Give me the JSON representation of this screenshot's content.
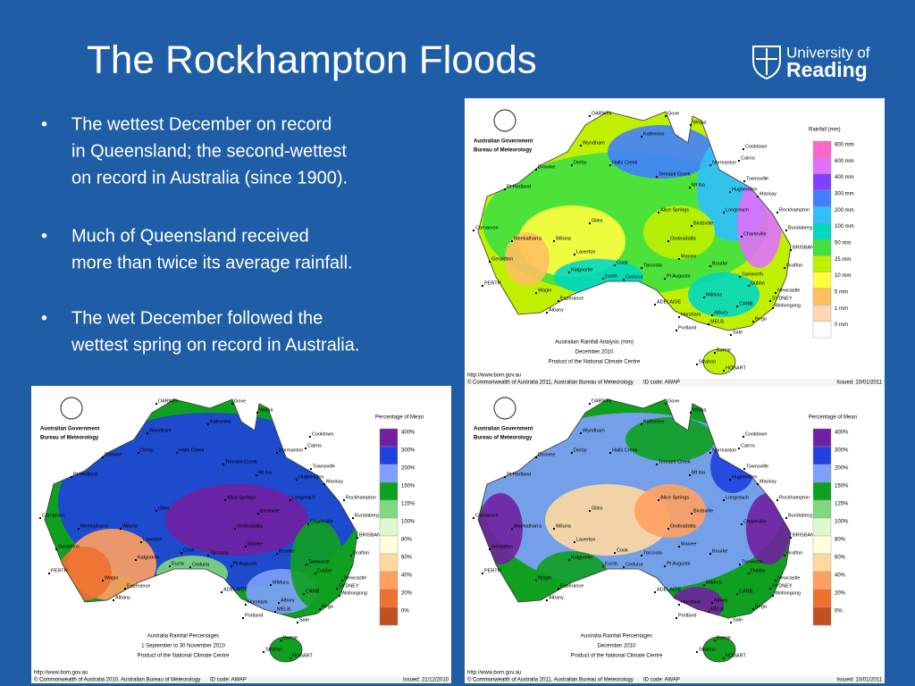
{
  "title": "The Rockhampton Floods",
  "logo": {
    "line1": "University of",
    "line2": "Reading"
  },
  "bullets": [
    [
      "The wettest December on record",
      "in Queensland; the second-wettest",
      "on record in Australia (since 1900)."
    ],
    [
      "Much of Queensland received",
      "more than twice its average rainfall."
    ],
    [
      "The wet December followed the",
      "wettest spring on record in Australia."
    ]
  ],
  "maps": [
    {
      "agency": "Australian Government",
      "bureau": "Bureau of Meteorology",
      "legend_title": "Rainfall (mm)",
      "legend_labels": [
        "800 mm",
        "600 mm",
        "400 mm",
        "300 mm",
        "200 mm",
        "100 mm",
        "50 mm",
        "25 mm",
        "10 mm",
        "5 mm",
        "1 mm",
        "0 mm"
      ],
      "legend_colors": [
        "#ff66cc",
        "#e070ff",
        "#8040ff",
        "#4080ff",
        "#30c0ff",
        "#00d8c0",
        "#40e040",
        "#c0f000",
        "#ffff40",
        "#ffc060",
        "#ffd8b0",
        "#ffffff"
      ],
      "caption": [
        "Australian Rainfall Analysis (mm)",
        "December 2010",
        "Product of the National Climate Centre"
      ],
      "footer": [
        "http://www.bom.gov.au",
        "© Commonwealth of Australia 2011, Australian Bureau of Meteorology",
        "ID code: AWAP",
        "Issued: 10/01/2011"
      ],
      "places": [
        "DARWIN",
        "Gove",
        "Weipa",
        "Katherine",
        "Wyndham",
        "Cooktown",
        "Cairns",
        "Broome",
        "Derby",
        "Halls Creek",
        "Normanton",
        "Townsville",
        "Tennant Creek",
        "Mt Isa",
        "Hughenden",
        "Mackay",
        "Pt Hedland",
        "Longreach",
        "Rockhampton",
        "Alice Springs",
        "Giles",
        "Birdsville",
        "Charleville",
        "Bundaberg",
        "Carnarvon",
        "Meekatharra",
        "Wiluna",
        "Oodnadatta",
        "BRISBANE",
        "Geraldton",
        "Laverton",
        "Cook",
        "Marree",
        "Bourke",
        "Grafton",
        "Kalgoorlie",
        "Tarcoola",
        "Tamworth",
        "PERTH",
        "Eucla",
        "Ceduna",
        "Pt Augusta",
        "Dubbo",
        "Newcastle",
        "SYDNEY",
        "Wagin",
        "Esperance",
        "Mildura",
        "Wollongong",
        "CANB.",
        "ADELAIDE",
        "Albany",
        "Horsham",
        "Albury",
        "Bega",
        "MELB.",
        "Portland",
        "Sale",
        "Strahan",
        "Burnie",
        "HOBART"
      ]
    },
    {
      "agency": "Australian Government",
      "bureau": "Bureau of Meteorology",
      "legend_title": "Percentage of Mean",
      "legend_labels": [
        "400%",
        "300%",
        "200%",
        "150%",
        "125%",
        "100%",
        "80%",
        "60%",
        "40%",
        "20%",
        "0%"
      ],
      "legend_colors": [
        "#7020a0",
        "#2040e0",
        "#80a0ff",
        "#10a020",
        "#80d880",
        "#e0f8d0",
        "#ffffe0",
        "#ffd8a0",
        "#ffa060",
        "#f07030",
        "#c05020"
      ],
      "caption": [
        "Australia Rainfall Percentages",
        "1 September to 30 November 2010",
        "Product of the National Climate Centre"
      ],
      "footer": [
        "http://www.bom.gov.au",
        "© Commonwealth of Australia 2010, Australian Bureau of Meteorology",
        "ID code: AWAP",
        "Issued: 21/12/2010"
      ],
      "places": [
        "DARWIN",
        "Gove",
        "Weipa",
        "Katherine",
        "Wyndham",
        "Cooktown",
        "Cairns",
        "Broome",
        "Derby",
        "Halls Creek",
        "Normanton",
        "Townsville",
        "Tennant Creek",
        "Mt Isa",
        "Hughenden",
        "Mackay",
        "Pt Hedland",
        "Longreach",
        "Rockhampton",
        "Alice Springs",
        "Giles",
        "Birdsville",
        "Charleville",
        "Bundaberg",
        "Carnarvon",
        "Meekatharra",
        "Wiluna",
        "Oodnadatta",
        "BRISBANE",
        "Geraldton",
        "Laverton",
        "Cook",
        "Marree",
        "Bourke",
        "Grafton",
        "Kalgoorlie",
        "Tarcoola",
        "Tamworth",
        "PERTH",
        "Eucla",
        "Ceduna",
        "Pt Augusta",
        "Dubbo",
        "Newcastle",
        "SYDNEY",
        "Wagin",
        "Esperance",
        "Mildura",
        "Wollongong",
        "CANB.",
        "ADELAIDE",
        "Albany",
        "Horsham",
        "Albury",
        "Bega",
        "MELB.",
        "Portland",
        "Sale",
        "Strahan",
        "Burnie",
        "HOBART"
      ]
    },
    {
      "agency": "Australian Government",
      "bureau": "Bureau of Meteorology",
      "legend_title": "Percentage of Mean",
      "legend_labels": [
        "400%",
        "300%",
        "200%",
        "150%",
        "125%",
        "100%",
        "80%",
        "60%",
        "40%",
        "20%",
        "0%"
      ],
      "legend_colors": [
        "#7020a0",
        "#2040e0",
        "#80a0ff",
        "#10a020",
        "#80d880",
        "#e0f8d0",
        "#ffffe0",
        "#ffd8a0",
        "#ffa060",
        "#f07030",
        "#c05020"
      ],
      "caption": [
        "Australia Rainfall Percentages",
        "December 2010",
        "Product of the National Climate Centre"
      ],
      "footer": [
        "http://www.bom.gov.au",
        "© Commonwealth of Australia 2011, Australian Bureau of Meteorology",
        "ID code: AWAP",
        "Issued: 10/01/2011"
      ],
      "places": [
        "DARWIN",
        "Gove",
        "Weipa",
        "Katherine",
        "Wyndham",
        "Cooktown",
        "Cairns",
        "Broome",
        "Derby",
        "Halls Creek",
        "Normanton",
        "Townsville",
        "Tennant Creek",
        "Mt Isa",
        "Hughenden",
        "Mackay",
        "Pt Hedland",
        "Longreach",
        "Rockhampton",
        "Alice Springs",
        "Giles",
        "Birdsville",
        "Charleville",
        "Bundaberg",
        "Carnarvon",
        "Meekatharra",
        "Wiluna",
        "Oodnadatta",
        "BRISBANE",
        "Geraldton",
        "Laverton",
        "Cook",
        "Marree",
        "Bourke",
        "Grafton",
        "Kalgoorlie",
        "Tarcoola",
        "Tamworth",
        "PERTH",
        "Eucla",
        "Ceduna",
        "Pt Augusta",
        "Dubbo",
        "Newcastle",
        "SYDNEY",
        "Wagin",
        "Esperance",
        "Mildura",
        "Wollongong",
        "CANB.",
        "ADELAIDE",
        "Albany",
        "Horsham",
        "Albury",
        "Bega",
        "MELB.",
        "Portland",
        "Sale",
        "Strahan",
        "Burnie",
        "HOBART"
      ]
    }
  ]
}
